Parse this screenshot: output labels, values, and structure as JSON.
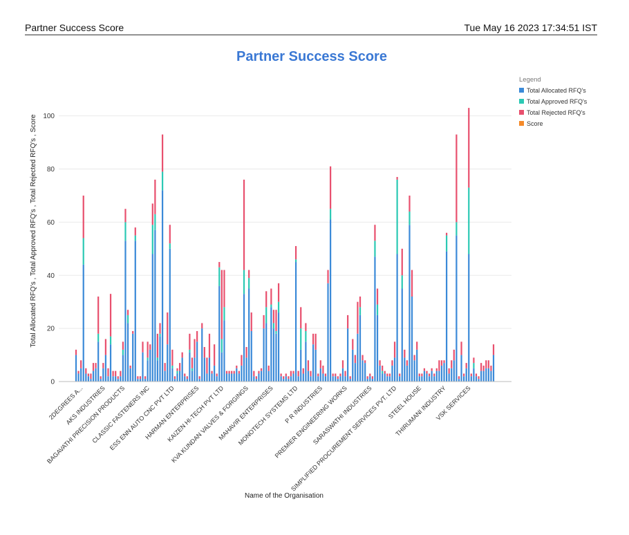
{
  "header": {
    "title": "Partner Success Score",
    "datetime": "Tue May 16 2023 17:34:51 IST"
  },
  "chart_data": {
    "type": "bar",
    "stacked": true,
    "title": "Partner Success Score",
    "xlabel": "Name of the Organisation",
    "ylabel": "Total Allocated RFQ's , Total Approved RFQ's , Total Rejected RFQ's , Score",
    "ylim": [
      0,
      115
    ],
    "yticks": [
      0,
      20,
      40,
      60,
      80,
      100
    ],
    "grid": true,
    "legend": {
      "title": "Legend",
      "position": "top-right",
      "entries": [
        {
          "name": "Total Allocated RFQ's",
          "color": "#3b8ad8"
        },
        {
          "name": "Total Approved RFQ's",
          "color": "#2cc9b4"
        },
        {
          "name": "Total Rejected RFQ's",
          "color": "#e8506e"
        },
        {
          "name": "Score",
          "color": "#f58a2a"
        }
      ]
    },
    "category_labels": [
      {
        "label": "2DEGREES A...",
        "index": 2
      },
      {
        "label": "AKS INDUSTRIES",
        "index": 11
      },
      {
        "label": "BAGAVATHI PRECISION PRODUCTS",
        "index": 19
      },
      {
        "label": "CLASSIC FASTENERS INC",
        "index": 29
      },
      {
        "label": "ESS ENN AUTO CNC PVT LTD",
        "index": 39
      },
      {
        "label": "HARMAN ENTERPRISES",
        "index": 49
      },
      {
        "label": "KAIZEN HI-TECH PVT LTD",
        "index": 59
      },
      {
        "label": "KVA KUNDAN VALVES & FORGINGS",
        "index": 69
      },
      {
        "label": "MAHAVIR ENTERPRISES",
        "index": 79
      },
      {
        "label": "MONOTECH SYSTEMS LTD",
        "index": 89
      },
      {
        "label": "P R INDUSTRIES",
        "index": 99
      },
      {
        "label": "PREMIER ENGINEERING WORKS",
        "index": 109
      },
      {
        "label": "SARASWATHI INDUSTRIES",
        "index": 119
      },
      {
        "label": "SIMPLIFIED PROCUREMENT SERVICES PVT. LTD",
        "index": 129
      },
      {
        "label": "STEEL HOUSE",
        "index": 139
      },
      {
        "label": "THIRUMANI INDUSTRY",
        "index": 149
      },
      {
        "label": "VSK SERVICES",
        "index": 159
      }
    ],
    "series": [
      {
        "name": "Total Allocated RFQ's",
        "values": [
          10,
          3,
          5,
          44,
          3,
          2,
          1,
          4,
          5,
          15,
          1,
          5,
          10,
          2,
          14,
          2,
          2,
          1,
          2,
          10,
          53,
          22,
          5,
          18,
          53,
          1,
          1,
          11,
          1,
          8,
          12,
          48,
          57,
          8,
          17,
          72,
          4,
          14,
          50,
          5,
          1,
          3,
          4,
          9,
          2,
          1,
          11,
          4,
          9,
          15,
          1,
          20,
          9,
          3,
          9,
          3,
          6,
          2,
          36,
          11,
          23,
          3,
          3,
          3,
          3,
          5,
          3,
          6,
          33,
          9,
          35,
          19,
          2,
          1,
          3,
          4,
          20,
          22,
          4,
          28,
          20,
          18,
          26,
          2,
          1,
          2,
          1,
          2,
          3,
          45,
          2,
          12,
          3,
          15,
          4,
          2,
          14,
          12,
          2,
          5,
          3,
          2,
          37,
          61,
          2,
          2,
          1,
          2,
          5,
          2,
          20,
          1,
          12,
          7,
          18,
          25,
          8,
          7,
          1,
          2,
          1,
          47,
          25,
          6,
          3,
          3,
          2,
          2,
          6,
          9,
          48,
          2,
          35,
          9,
          6,
          59,
          32,
          8,
          12,
          2,
          2,
          4,
          3,
          2,
          4,
          2,
          4,
          4,
          6,
          7,
          49,
          3,
          5,
          8,
          55,
          1,
          10,
          2,
          5,
          48,
          2,
          5,
          2,
          1,
          4,
          4,
          5,
          5,
          4,
          10
        ]
      },
      {
        "name": "Total Approved RFQ's",
        "values": [
          0,
          0,
          0,
          10,
          0,
          0,
          0,
          0,
          0,
          3,
          0,
          0,
          0,
          0,
          3,
          0,
          0,
          0,
          0,
          2,
          7,
          3,
          0,
          0,
          2,
          0,
          0,
          0,
          0,
          1,
          0,
          11,
          6,
          1,
          1,
          7,
          0,
          0,
          2,
          1,
          0,
          1,
          0,
          0,
          0,
          0,
          1,
          1,
          0,
          0,
          0,
          0,
          0,
          0,
          0,
          0,
          0,
          0,
          7,
          5,
          5,
          0,
          0,
          0,
          0,
          0,
          0,
          0,
          9,
          0,
          4,
          0,
          0,
          0,
          0,
          0,
          0,
          6,
          0,
          1,
          2,
          1,
          4,
          0,
          0,
          0,
          0,
          0,
          0,
          1,
          0,
          8,
          0,
          4,
          0,
          0,
          0,
          0,
          0,
          0,
          0,
          0,
          0,
          4,
          0,
          0,
          0,
          0,
          0,
          0,
          0,
          0,
          0,
          0,
          0,
          3,
          0,
          0,
          0,
          0,
          0,
          6,
          4,
          0,
          1,
          0,
          0,
          0,
          0,
          0,
          28,
          0,
          5,
          0,
          0,
          5,
          0,
          0,
          0,
          0,
          0,
          0,
          0,
          0,
          0,
          0,
          0,
          0,
          0,
          0,
          6,
          0,
          0,
          0,
          5,
          0,
          0,
          0,
          0,
          25,
          0,
          2,
          0,
          0,
          0,
          0,
          0,
          0,
          0,
          0
        ]
      },
      {
        "name": "Total Rejected RFQ's",
        "values": [
          2,
          1,
          3,
          16,
          2,
          1,
          2,
          3,
          2,
          14,
          1,
          2,
          6,
          3,
          16,
          2,
          2,
          1,
          2,
          3,
          5,
          2,
          1,
          1,
          3,
          1,
          1,
          4,
          1,
          6,
          2,
          8,
          13,
          9,
          4,
          14,
          3,
          12,
          7,
          6,
          1,
          1,
          3,
          2,
          1,
          1,
          6,
          4,
          7,
          4,
          1,
          2,
          4,
          6,
          9,
          1,
          8,
          1,
          2,
          26,
          14,
          1,
          1,
          1,
          1,
          1,
          1,
          4,
          34,
          4,
          3,
          7,
          2,
          1,
          1,
          1,
          5,
          6,
          2,
          6,
          5,
          8,
          7,
          1,
          1,
          1,
          1,
          2,
          1,
          5,
          2,
          8,
          2,
          3,
          4,
          2,
          4,
          6,
          1,
          3,
          3,
          1,
          5,
          16,
          1,
          1,
          1,
          1,
          3,
          2,
          5,
          1,
          4,
          3,
          12,
          4,
          2,
          1,
          1,
          1,
          1,
          6,
          6,
          2,
          2,
          1,
          1,
          1,
          2,
          6,
          1,
          1,
          10,
          3,
          2,
          6,
          10,
          2,
          3,
          1,
          1,
          1,
          1,
          1,
          1,
          1,
          1,
          4,
          2,
          1,
          1,
          2,
          3,
          4,
          33,
          1,
          5,
          1,
          2,
          30,
          1,
          2,
          1,
          1,
          3,
          2,
          3,
          3,
          2,
          4
        ]
      },
      {
        "name": "Score",
        "values": [
          0,
          0,
          0,
          0,
          0,
          0,
          0,
          0,
          0,
          0,
          0,
          0,
          0,
          0,
          0,
          0,
          0,
          0,
          0,
          0,
          0,
          0,
          0,
          0,
          0,
          0,
          0,
          0,
          0,
          0,
          0,
          0,
          0,
          0,
          0,
          0,
          0,
          0,
          0,
          0,
          0,
          0,
          0,
          0,
          0,
          0,
          0,
          0,
          0,
          0,
          0,
          0,
          0,
          0,
          0,
          0,
          0,
          0,
          0,
          0,
          0,
          0,
          0,
          0,
          0,
          0,
          0,
          0,
          0,
          0,
          0,
          0,
          0,
          0,
          0,
          0,
          0,
          0,
          0,
          0,
          0,
          0,
          0,
          0,
          0,
          0,
          0,
          0,
          0,
          0,
          0,
          0,
          0,
          0,
          0,
          0,
          0,
          0,
          0,
          0,
          0,
          0,
          0,
          0,
          0,
          0,
          0,
          0,
          0,
          0,
          0,
          0,
          0,
          0,
          0,
          0,
          0,
          0,
          0,
          0,
          0,
          0,
          0,
          0,
          0,
          0,
          0,
          0,
          0,
          0,
          0,
          0,
          0,
          0,
          0,
          0,
          0,
          0,
          0,
          0,
          0,
          0,
          0,
          0,
          0,
          0,
          0,
          0,
          0,
          0,
          0,
          0,
          0,
          0,
          0,
          0,
          0,
          0,
          0,
          0,
          0,
          0,
          0,
          0,
          0,
          0,
          0,
          0,
          0,
          0
        ]
      }
    ]
  }
}
